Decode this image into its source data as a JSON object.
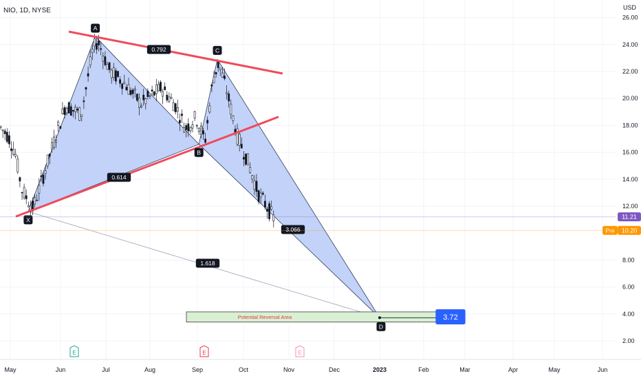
{
  "chart_data": {
    "type": "candlestick",
    "title": "NIO, 1D, NYSE",
    "currency": "USD",
    "y_range": [
      1.0,
      27.0
    ],
    "y_ticks": [
      "26.00",
      "24.00",
      "22.00",
      "20.00",
      "18.00",
      "16.00",
      "14.00",
      "12.00",
      "8.00",
      "6.00",
      "4.00",
      "2.00"
    ],
    "x_ticks": [
      "May",
      "Jun",
      "Jul",
      "Aug",
      "Sep",
      "Oct",
      "Nov",
      "Dec",
      "2023",
      "Feb",
      "Mar",
      "Apr",
      "May",
      "Jun"
    ],
    "last_price": {
      "value": 11.21,
      "text": "11.21",
      "color": "#7e57c2"
    },
    "premarket": {
      "label": "Pre",
      "value": 10.2,
      "text": "10.20",
      "color": "#ff9800"
    },
    "pattern_points": {
      "X": {
        "date": "2022-05-12",
        "price": 11.6
      },
      "A": {
        "date": "2022-06-24",
        "price": 24.6
      },
      "B": {
        "date": "2022-09-02",
        "price": 16.6
      },
      "C": {
        "date": "2022-09-14",
        "price": 22.9
      },
      "D": {
        "date": "2023-01-01",
        "price": 3.72
      }
    },
    "pattern_point_labels": [
      "X",
      "A",
      "B",
      "C",
      "D"
    ],
    "ratios": {
      "ab": "0.792",
      "xb": "0.614",
      "bd": "3.066",
      "xd": "1.618"
    },
    "target": {
      "text": "3.72",
      "value": 3.72,
      "color": "#2962ff"
    },
    "reversal_zone": {
      "label": "Potential Reversal Area",
      "from": 3.4,
      "to": 4.15
    },
    "earnings_markers": [
      "E",
      "E",
      "E"
    ],
    "trendline_color": "#f04a5a",
    "pattern_fill": "#b9caf7"
  }
}
